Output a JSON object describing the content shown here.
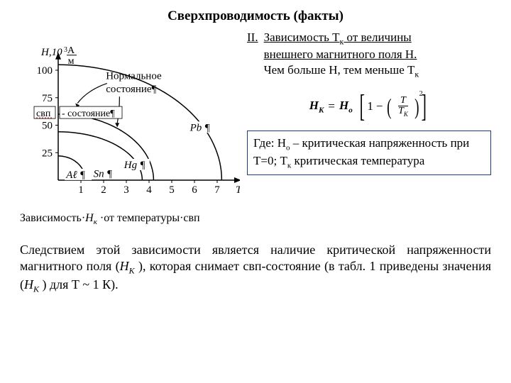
{
  "title": "Сверхпроводимость (факты)",
  "heading": {
    "num": "II.",
    "line1": "Зависимость Т",
    "sub": "к",
    "line1_end": " от величины",
    "line2": "внешнего магнитного поля Н.",
    "line3": "Чем больше Н, тем меньше Т",
    "line3_sub": "к"
  },
  "formula": {
    "lhs_H": "H",
    "lhs_K": "K",
    "eq": "=",
    "Ho_H": "H",
    "Ho_o": "o",
    "one": "1",
    "minus": "−",
    "frac_num": "T",
    "frac_den_T": "T",
    "frac_den_K": "K",
    "sq": "2"
  },
  "where": {
    "label": "Где: Н",
    "o": "о",
    "t1": " – критическая напряженность при Т=0; Т",
    "k": "к",
    "t2": " критическая температура"
  },
  "chart": {
    "y_axis_label_H": "Н,10",
    "y_axis_label_exp": "3",
    "y_axis_unit_top": "А",
    "y_axis_unit_bot": "м",
    "y_ticks": [
      "100",
      "75",
      "50",
      "25"
    ],
    "x_ticks": [
      "1",
      "2",
      "3",
      "4",
      "5",
      "6",
      "7"
    ],
    "x_axis_label": "Т, К",
    "normal_state": "Нормальное состояние¶",
    "svp_state_a": "свп",
    "svp_state_b": "- состояние¶",
    "labels": {
      "Al": "Aℓ ¶",
      "Sn": "Sn ¶",
      "Hg": "Hg ¶",
      "Pb": "Pb ¶"
    },
    "caption_a": "Зависимость·",
    "caption_b": "Н",
    "caption_c": "к",
    "caption_d": " ·от  температуры·свп",
    "colors": {
      "axis": "#000000",
      "curve": "#000000",
      "red": "#cc0000",
      "box": "#000000"
    },
    "curves": {
      "Pb": {
        "x0": 0,
        "y0": 105,
        "xEnd": 7.2
      },
      "Hg": {
        "x0": 0,
        "y0": 60,
        "xEnd": 4.2
      },
      "Sn": {
        "x0": 0,
        "y0": 44,
        "xEnd": 3.7
      },
      "Al": {
        "x0": 0,
        "y0": 22,
        "xEnd": 1.2
      }
    },
    "plot": {
      "ox": 54,
      "oy": 212,
      "sx": 32,
      "sy": 1.55,
      "ymax": 115
    }
  },
  "paragraph": {
    "t1": "Следствием этой зависимости является наличие критической напряженности магнитного поля (",
    "HK1": "Н",
    "HK1s": "К",
    "t2": " ), которая снимает свп-состояние (в табл. 1 приведены значения (",
    "HK2": "Н",
    "HK2s": "К",
    "t3": " ) для Т ~ 1 К)."
  }
}
